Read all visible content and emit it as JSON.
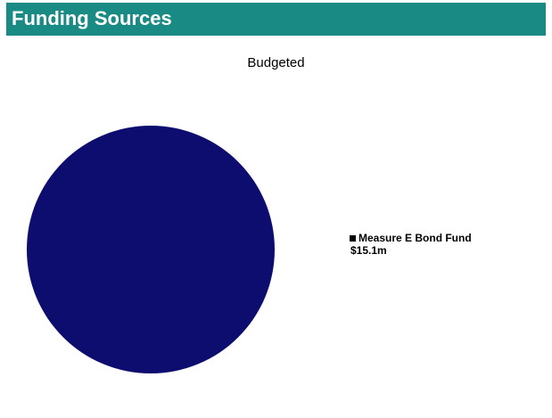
{
  "header": {
    "title": "Funding Sources",
    "color": "#1a8a85"
  },
  "chart_data": {
    "type": "pie",
    "title": "Budgeted",
    "slices": [
      {
        "label": "Measure E Bond Fund",
        "value_label": "$15.1m",
        "value": 15.1,
        "color": "#0d0d70"
      }
    ],
    "legend_placement": "right"
  }
}
